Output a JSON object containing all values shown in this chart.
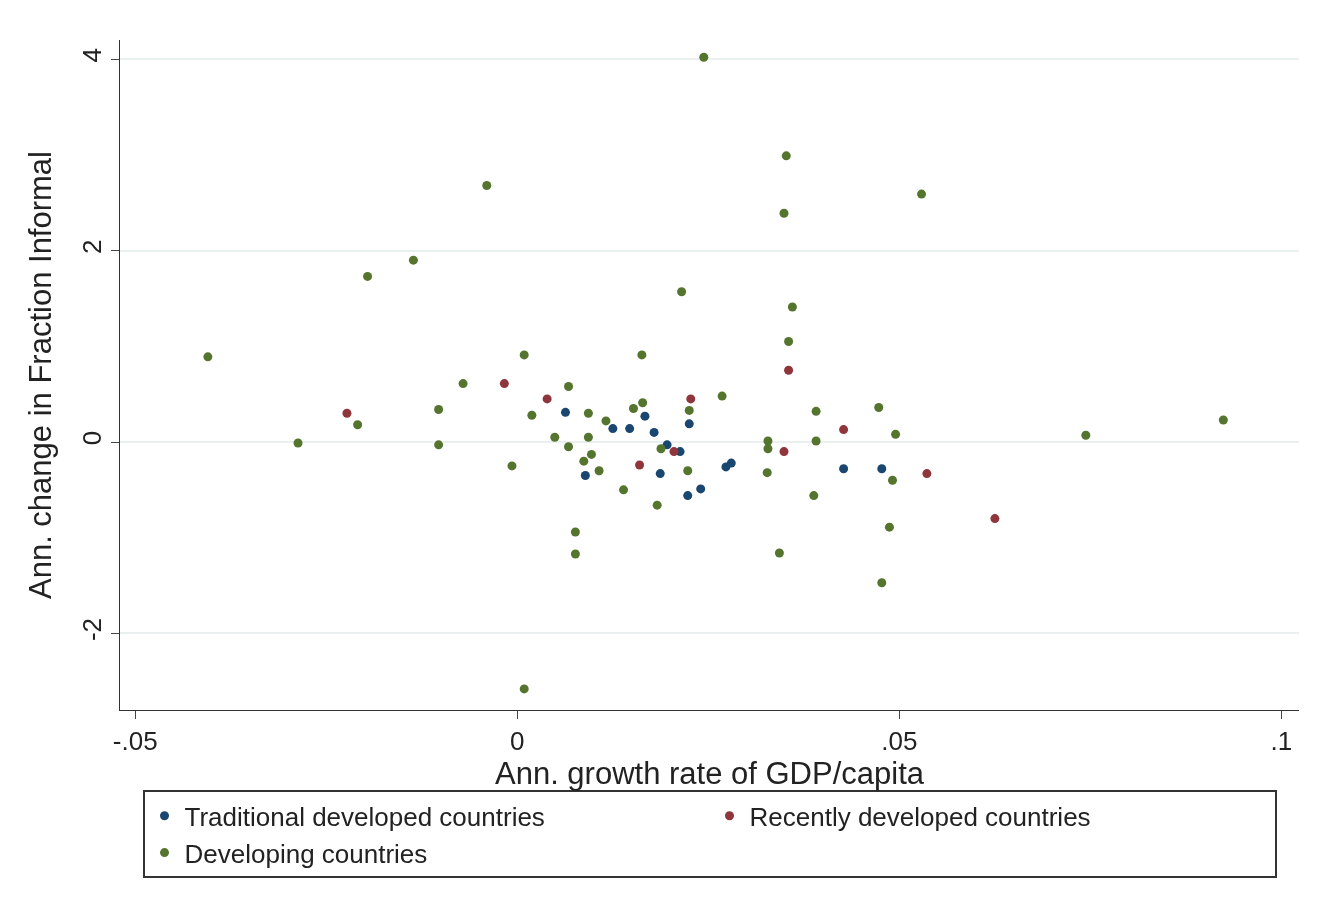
{
  "chart_data": {
    "type": "scatter",
    "xlabel": "Ann. growth rate of GDP/capita",
    "ylabel": "Ann. change in Fraction Informal",
    "xlim": [
      -0.052,
      0.1023
    ],
    "ylim": [
      -2.8,
      4.2
    ],
    "xticks": [
      {
        "value": -0.05,
        "label": "-.05"
      },
      0,
      {
        "value": 0.05,
        "label": ".05"
      },
      {
        "value": 0.1,
        "label": ".1"
      }
    ],
    "yticks": [
      -2,
      0,
      2,
      4
    ],
    "grid": "y",
    "legend": "bottom",
    "marker": "circle",
    "series": [
      {
        "name": "Traditional developed countries",
        "color": "#1a476f",
        "x": [
          0.0063,
          0.0125,
          0.0147,
          0.0167,
          0.0179,
          0.0196,
          0.0213,
          0.0187,
          0.0225,
          0.024,
          0.0223,
          0.0273,
          0.028,
          0.0089,
          0.0427,
          0.0477
        ],
        "values": [
          0.31,
          0.14,
          0.14,
          0.27,
          0.1,
          -0.03,
          -0.1,
          -0.33,
          0.19,
          -0.49,
          -0.56,
          -0.26,
          -0.22,
          -0.35,
          -0.28,
          -0.28
        ]
      },
      {
        "name": "Recently developed countries",
        "color": "#90353b",
        "x": [
          -0.0223,
          -0.0017,
          0.0039,
          0.016,
          0.0205,
          0.0227,
          0.0355,
          0.0349,
          0.0427,
          0.0536,
          0.0625
        ],
        "values": [
          0.3,
          0.61,
          0.45,
          -0.24,
          -0.1,
          0.45,
          0.75,
          -0.1,
          0.13,
          -0.33,
          -0.8
        ]
      },
      {
        "name": "Developing countries",
        "color": "#55752f",
        "x": [
          0.0244,
          0.0352,
          0.0529,
          0.0349,
          -0.004,
          -0.0136,
          -0.0196,
          0.0215,
          0.036,
          0.0355,
          -0.0405,
          0.0009,
          0.0163,
          -0.0071,
          0.0067,
          0.0268,
          0.0473,
          0.0391,
          -0.0103,
          -0.0209,
          0.0019,
          -0.0287,
          -0.0103,
          -0.0007,
          0.0049,
          0.0067,
          0.0093,
          0.0093,
          0.0116,
          0.0164,
          0.0087,
          0.0107,
          0.0139,
          0.0183,
          0.0076,
          0.0076,
          0.0328,
          0.0328,
          0.0327,
          0.0391,
          0.0388,
          0.0495,
          0.0491,
          0.0487,
          0.0343,
          0.0477,
          0.0009,
          0.0744,
          0.0924,
          0.0223,
          0.0188,
          0.0152,
          0.0097,
          0.0225
        ],
        "values": [
          4.02,
          2.99,
          2.59,
          2.39,
          2.68,
          1.9,
          1.73,
          1.57,
          1.41,
          1.05,
          0.89,
          0.91,
          0.91,
          0.61,
          0.58,
          0.48,
          0.36,
          0.32,
          0.34,
          0.18,
          0.28,
          -0.01,
          -0.03,
          -0.25,
          0.05,
          -0.05,
          0.05,
          0.3,
          0.22,
          0.41,
          -0.2,
          -0.3,
          -0.5,
          -0.66,
          -0.94,
          -1.17,
          0.01,
          -0.07,
          -0.32,
          0.01,
          -0.56,
          0.08,
          -0.4,
          -0.89,
          -1.16,
          -1.47,
          -2.58,
          0.07,
          0.23,
          -0.3,
          -0.07,
          0.35,
          -0.13,
          0.33
        ]
      }
    ]
  }
}
